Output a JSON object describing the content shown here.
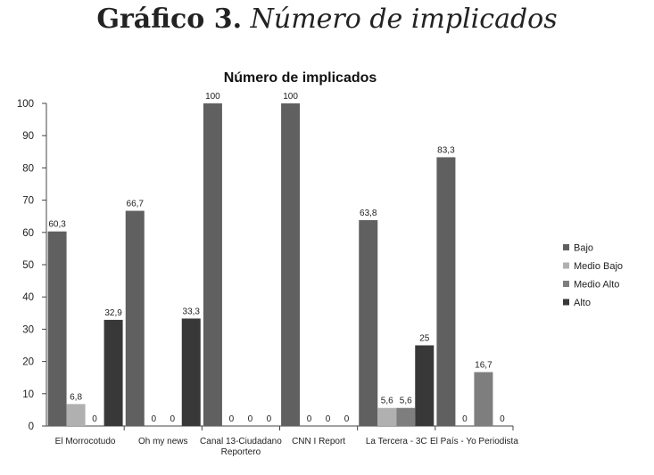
{
  "heading": {
    "lead": "Gráfico 3.",
    "rest": "Número de implicados"
  },
  "chart_data": {
    "type": "bar",
    "title": "Número de implicados",
    "xlabel": "",
    "ylabel": "",
    "ylim": [
      0,
      100
    ],
    "yticks": [
      "0",
      "10",
      "20",
      "30",
      "40",
      "50",
      "60",
      "70",
      "80",
      "90",
      "100"
    ],
    "grid": false,
    "legend_position": "right",
    "categories": [
      [
        "El Morrocotudo"
      ],
      [
        "Oh my news"
      ],
      [
        "Canal 13-Ciudadano",
        "Reportero"
      ],
      [
        "CNN I Report"
      ],
      [
        "La Tercera - 3C"
      ],
      [
        "El País - Yo Periodista"
      ]
    ],
    "series": [
      {
        "name": "Bajo",
        "color": "#606060",
        "values": [
          60.3,
          66.7,
          100,
          100,
          63.8,
          83.3
        ],
        "labels": [
          "60,3",
          "66,7",
          "100",
          "100",
          "63,8",
          "83,3"
        ]
      },
      {
        "name": "Medio Bajo",
        "color": "#b0b0b0",
        "values": [
          6.8,
          0,
          0,
          0,
          5.6,
          0
        ],
        "labels": [
          "6,8",
          "0",
          "0",
          "0",
          "5,6",
          "0"
        ]
      },
      {
        "name": "Medio Alto",
        "color": "#7e7e7e",
        "values": [
          0,
          0,
          0,
          0,
          5.6,
          16.7
        ],
        "labels": [
          "0",
          "0",
          "0",
          "0",
          "5,6",
          "16,7"
        ]
      },
      {
        "name": "Alto",
        "color": "#383838",
        "values": [
          32.9,
          33.3,
          0,
          0,
          25,
          0
        ],
        "labels": [
          "32,9",
          "33,3",
          "0",
          "0",
          "25",
          "0"
        ]
      }
    ]
  }
}
